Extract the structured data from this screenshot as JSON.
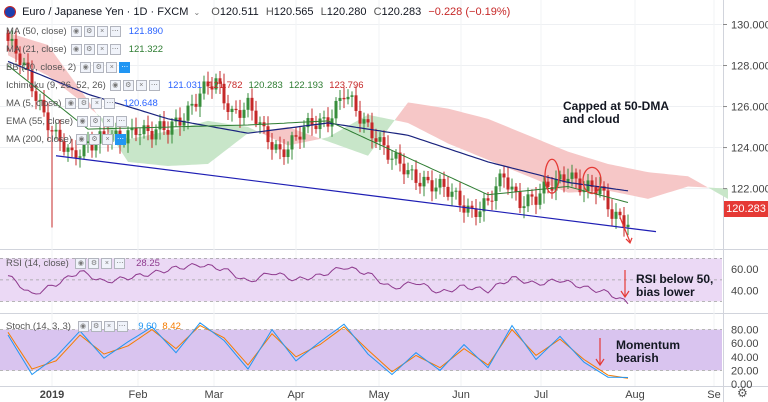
{
  "header": {
    "symbol": "Euro / Japanese Yen",
    "interval": "1D",
    "exchange": "FXCM",
    "open_label": "O",
    "open": "120.511",
    "high_label": "H",
    "high": "120.565",
    "low_label": "L",
    "low": "120.280",
    "close_label": "C",
    "close": "120.283",
    "change": "−0.228 (−0.19%)"
  },
  "indicators": [
    {
      "name": "MA (50, close)",
      "values": [
        "121.890"
      ],
      "colors": [
        "#2962ff"
      ]
    },
    {
      "name": "MA (21, close)",
      "values": [
        "121.322"
      ],
      "colors": [
        "#2e7d32"
      ]
    },
    {
      "name": "BB (20, close, 2)",
      "values": [],
      "colors": []
    },
    {
      "name": "Ichimoku (9, 26, 52, 26)",
      "values": [
        "121.031",
        "121.782",
        "120.283",
        "122.193",
        "123.796"
      ],
      "colors": [
        "#2962ff",
        "#c62828",
        "#2e7d32",
        "#2e7d32",
        "#c62828"
      ]
    },
    {
      "name": "MA (5, close)",
      "values": [
        "120.648"
      ],
      "colors": [
        "#2962ff"
      ]
    },
    {
      "name": "EMA (55, close)",
      "values": [],
      "colors": []
    },
    {
      "name": "MA (200, close)",
      "values": [],
      "colors": []
    }
  ],
  "annotations": {
    "main": [
      "Capped at 50-DMA",
      "and cloud"
    ],
    "rsi": [
      "RSI below 50,",
      "bias lower"
    ],
    "stoch": [
      "Momentum",
      "bearish"
    ]
  },
  "colors": {
    "up": "#388e3c",
    "down": "#c62828",
    "cloud_red": "#f6c7c7",
    "cloud_green": "#c8e6c9",
    "ma50": "#1a237e",
    "ma21": "#2e7d32",
    "trend": "#1e1eb4",
    "rsi": "#8e3a8e",
    "rsi_band": "#ebd9f5",
    "stoch_k": "#2196f3",
    "stoch_d": "#f57c00",
    "stoch_band": "#d9c4ef",
    "price_tag": "#e53935"
  },
  "chart_data": [
    {
      "type": "candlestick",
      "panel": "price",
      "yticks": [
        122,
        124,
        126,
        128,
        130
      ],
      "ylim": [
        119.2,
        131
      ],
      "x_months": [
        "2019",
        "Feb",
        "Mar",
        "Apr",
        "May",
        "Jun",
        "Jul",
        "Aug",
        "Se"
      ],
      "last_price": "120.283",
      "price_anchors": {
        "x_day": [
          0,
          4,
          8,
          12,
          16,
          20,
          24,
          28,
          32,
          36,
          40,
          44,
          48,
          52,
          56,
          60,
          64,
          68,
          72,
          76,
          80,
          84,
          88,
          92,
          96,
          100,
          104,
          108,
          112,
          116,
          120,
          124,
          128,
          132,
          136,
          140,
          144,
          148,
          151,
          153,
          155
        ],
        "close": [
          129.2,
          127.8,
          126.2,
          124.5,
          123.4,
          124.3,
          124.6,
          124.2,
          125.1,
          124.7,
          124.8,
          125.7,
          126.6,
          127.1,
          125.8,
          126.0,
          124.6,
          123.9,
          124.4,
          125.1,
          125.5,
          126.6,
          125.4,
          124.7,
          123.4,
          122.7,
          122.5,
          122.0,
          121.5,
          121.0,
          121.2,
          122.6,
          121.5,
          121.4,
          122.2,
          122.9,
          121.8,
          122.0,
          121.0,
          120.6,
          120.28
        ]
      },
      "ma50": {
        "x_day": [
          0,
          20,
          40,
          60,
          80,
          100,
          120,
          140,
          155
        ],
        "values": [
          128.2,
          126.6,
          125.4,
          124.7,
          125.2,
          124.6,
          123.3,
          122.3,
          121.89
        ]
      },
      "ma21": {
        "x_day": [
          0,
          20,
          40,
          60,
          80,
          100,
          120,
          140,
          155
        ],
        "values": [
          128.0,
          124.9,
          125.0,
          125.1,
          125.3,
          123.5,
          121.7,
          122.1,
          121.32
        ]
      },
      "trendline": {
        "x_day": [
          12,
          162
        ],
        "values": [
          123.6,
          119.9
        ]
      },
      "cloud": {
        "x_day": [
          0,
          10,
          20,
          30,
          40,
          50,
          60,
          70,
          80,
          90,
          100,
          110,
          120,
          130,
          140,
          150,
          160,
          170,
          180
        ],
        "span_a": [
          128.5,
          127.5,
          126.0,
          124.4,
          124.8,
          125.3,
          125.0,
          124.1,
          124.5,
          125.6,
          125.2,
          124.2,
          123.4,
          122.6,
          121.8,
          121.9,
          121.5,
          122.1,
          122.0
        ],
        "span_b": [
          129.6,
          129.0,
          126.3,
          123.3,
          123.1,
          123.2,
          124.7,
          125.0,
          124.3,
          123.6,
          126.2,
          125.9,
          125.4,
          124.6,
          123.8,
          123.2,
          122.8,
          122.6,
          121.5
        ]
      }
    },
    {
      "type": "line",
      "panel": "rsi",
      "name": "RSI (14, close)",
      "last_value": "28.25",
      "yticks": [
        40,
        60
      ],
      "ylim": [
        22,
        75
      ],
      "band": [
        30,
        70
      ],
      "x_day": [
        0,
        6,
        12,
        18,
        24,
        30,
        36,
        42,
        48,
        54,
        60,
        66,
        72,
        78,
        84,
        90,
        96,
        102,
        108,
        114,
        120,
        126,
        132,
        138,
        144,
        150,
        155
      ],
      "values": [
        54,
        36,
        46,
        58,
        48,
        52,
        56,
        61,
        64,
        60,
        48,
        57,
        50,
        54,
        62,
        56,
        42,
        48,
        38,
        44,
        40,
        52,
        46,
        50,
        43,
        38,
        28.25
      ]
    },
    {
      "type": "line",
      "panel": "stochastic",
      "name": "Stoch (14, 3, 3)",
      "k_value": "9.60",
      "d_value": "8.42",
      "yticks": [
        0,
        20,
        40,
        60,
        80
      ],
      "ylim": [
        0,
        100
      ],
      "band": [
        20,
        80
      ],
      "x_day": [
        0,
        6,
        12,
        18,
        24,
        30,
        36,
        42,
        48,
        54,
        60,
        66,
        72,
        78,
        84,
        90,
        96,
        102,
        108,
        114,
        120,
        126,
        132,
        138,
        144,
        150,
        155
      ],
      "k": [
        72,
        14,
        40,
        78,
        38,
        62,
        84,
        46,
        90,
        64,
        22,
        80,
        34,
        62,
        88,
        44,
        14,
        46,
        20,
        58,
        24,
        86,
        36,
        70,
        32,
        10,
        9.6
      ],
      "d": [
        76,
        22,
        34,
        72,
        44,
        56,
        80,
        52,
        86,
        68,
        28,
        74,
        40,
        58,
        84,
        50,
        18,
        42,
        24,
        52,
        28,
        80,
        42,
        66,
        36,
        13,
        8.42
      ]
    }
  ]
}
